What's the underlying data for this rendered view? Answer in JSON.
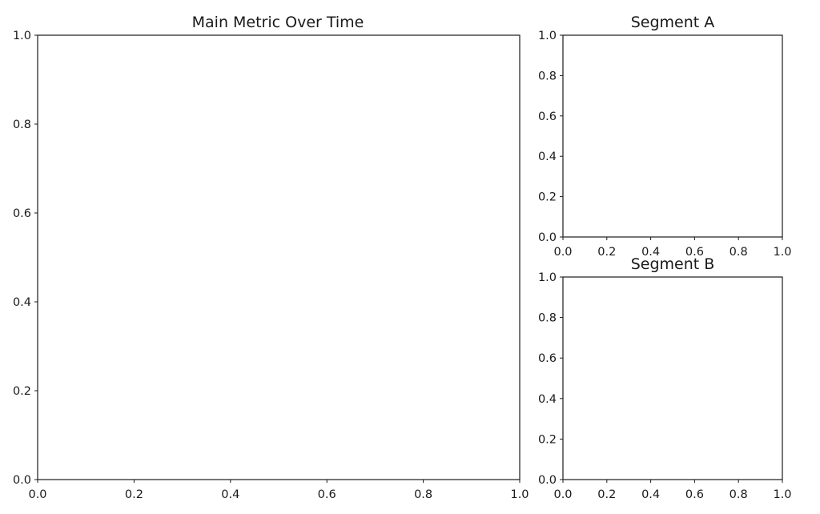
{
  "chart_data": [
    {
      "type": "line",
      "title": "Main Metric Over Time",
      "xlabel": "",
      "ylabel": "",
      "xlim": [
        0.0,
        1.0
      ],
      "ylim": [
        0.0,
        1.0
      ],
      "x_ticks": [
        "0.0",
        "0.2",
        "0.4",
        "0.6",
        "0.8",
        "1.0"
      ],
      "y_ticks": [
        "0.0",
        "0.2",
        "0.4",
        "0.6",
        "0.8",
        "1.0"
      ],
      "series": [],
      "grid": false,
      "legend": "none"
    },
    {
      "type": "line",
      "title": "Segment A",
      "xlabel": "",
      "ylabel": "",
      "xlim": [
        0.0,
        1.0
      ],
      "ylim": [
        0.0,
        1.0
      ],
      "x_ticks": [
        "0.0",
        "0.2",
        "0.4",
        "0.6",
        "0.8",
        "1.0"
      ],
      "y_ticks": [
        "0.0",
        "0.2",
        "0.4",
        "0.6",
        "0.8",
        "1.0"
      ],
      "series": [],
      "grid": false,
      "legend": "none"
    },
    {
      "type": "line",
      "title": "Segment B",
      "xlabel": "",
      "ylabel": "",
      "xlim": [
        0.0,
        1.0
      ],
      "ylim": [
        0.0,
        1.0
      ],
      "x_ticks": [
        "0.0",
        "0.2",
        "0.4",
        "0.6",
        "0.8",
        "1.0"
      ],
      "y_ticks": [
        "0.0",
        "0.2",
        "0.4",
        "0.6",
        "0.8",
        "1.0"
      ],
      "series": [],
      "grid": false,
      "legend": "none"
    }
  ]
}
